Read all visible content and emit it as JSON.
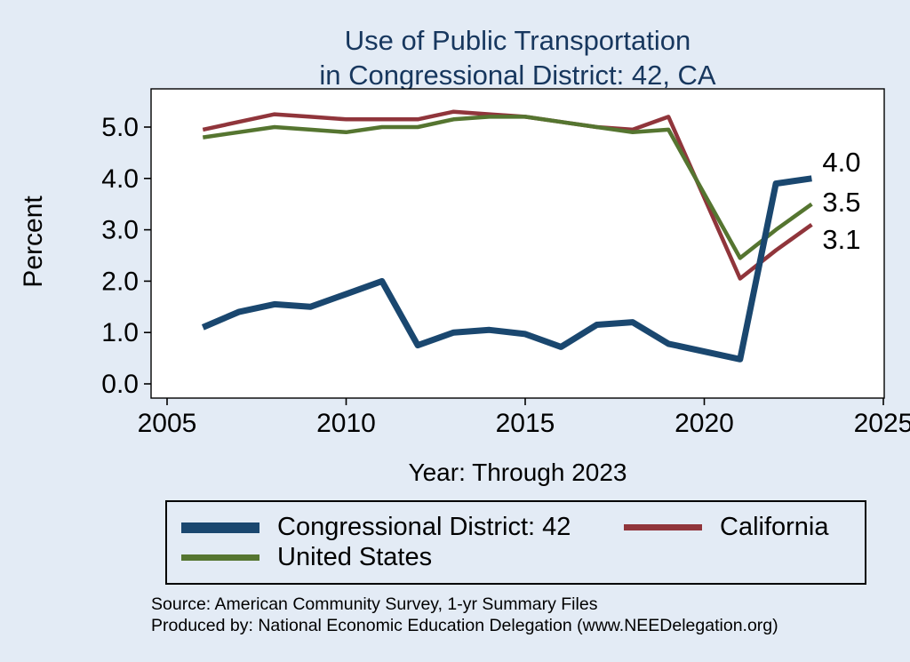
{
  "title": {
    "line1": "Use of Public Transportation",
    "line2": "in Congressional District: 42, CA"
  },
  "axes": {
    "y_label": "Percent",
    "x_label": "Year: Through 2023",
    "y_ticks": [
      {
        "label": "0.0",
        "value": 0
      },
      {
        "label": "1.0",
        "value": 1
      },
      {
        "label": "2.0",
        "value": 2
      },
      {
        "label": "3.0",
        "value": 3
      },
      {
        "label": "4.0",
        "value": 4
      },
      {
        "label": "5.0",
        "value": 5
      }
    ],
    "x_ticks": [
      {
        "label": "2005",
        "value": 2005
      },
      {
        "label": "2010",
        "value": 2010
      },
      {
        "label": "2015",
        "value": 2015
      },
      {
        "label": "2020",
        "value": 2020
      },
      {
        "label": "2025",
        "value": 2025
      }
    ]
  },
  "chart_data": {
    "type": "line",
    "title": "Use of Public Transportation in Congressional District: 42, CA",
    "xlabel": "Year: Through 2023",
    "ylabel": "Percent",
    "xlim": [
      2004.5,
      2025.5
    ],
    "ylim": [
      -0.3,
      5.75
    ],
    "grid": false,
    "legend_position": "bottom",
    "x": [
      2006,
      2007,
      2008,
      2009,
      2010,
      2011,
      2012,
      2013,
      2014,
      2015,
      2016,
      2017,
      2018,
      2019,
      2021,
      2022,
      2023
    ],
    "series": [
      {
        "name": "Congressional District: 42",
        "color": "#1a476f",
        "end_label": "4.0",
        "values": [
          1.1,
          1.4,
          1.55,
          1.5,
          1.75,
          2.0,
          0.75,
          1.0,
          1.05,
          0.97,
          0.72,
          1.15,
          1.2,
          0.78,
          0.48,
          3.9,
          4.0
        ]
      },
      {
        "name": "California",
        "color": "#90353b",
        "end_label": "3.1",
        "values": [
          4.95,
          5.1,
          5.25,
          5.2,
          5.15,
          5.15,
          5.15,
          5.3,
          5.25,
          5.2,
          5.1,
          5.0,
          4.95,
          5.2,
          2.05,
          2.6,
          3.1
        ]
      },
      {
        "name": "United States",
        "color": "#557530",
        "end_label": "3.5",
        "values": [
          4.8,
          4.9,
          5.0,
          4.95,
          4.9,
          5.0,
          5.0,
          5.15,
          5.2,
          5.2,
          5.1,
          5.0,
          4.9,
          4.95,
          2.45,
          3.0,
          3.5
        ]
      }
    ]
  },
  "legend": {
    "items": [
      {
        "label": "Congressional District: 42"
      },
      {
        "label": "California"
      },
      {
        "label": "United States"
      }
    ]
  },
  "source": {
    "line1": "Source: American Community Survey, 1-yr Summary Files",
    "line2": "Produced by: National Economic Education Delegation (www.NEEDelegation.org)"
  },
  "colors": {
    "background": "#e3ebf5",
    "title": "#17375e",
    "axis": "#000000"
  }
}
